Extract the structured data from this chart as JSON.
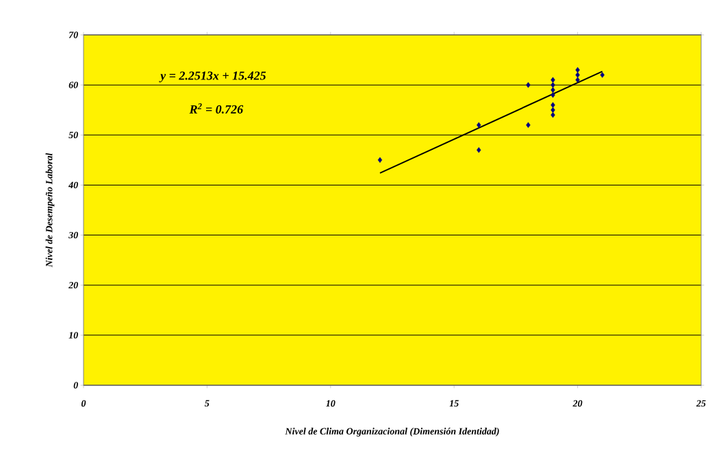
{
  "chart_data": {
    "type": "scatter",
    "xlabel": "Nivel de Clima Organizacional (Dimensión Identidad)",
    "ylabel": "Nivel de Desempeño Laboral",
    "xlim": [
      0,
      25
    ],
    "xticks": [
      0,
      5,
      10,
      15,
      20,
      25
    ],
    "ylim": [
      0,
      70
    ],
    "yticks": [
      0,
      10,
      20,
      30,
      40,
      50,
      60,
      70
    ],
    "grid": "y",
    "marker": "diamond",
    "series": [
      {
        "color": "#000080",
        "x": [
          12,
          16,
          16,
          18,
          18,
          19,
          19,
          19,
          19,
          19,
          19,
          19,
          20,
          20,
          20,
          21
        ],
        "values": [
          45,
          52,
          47,
          60,
          52,
          61,
          60,
          59,
          58,
          56,
          55,
          54,
          63,
          62,
          61,
          62
        ]
      },
      {
        "type": "line",
        "color": "#000000",
        "marker": "none",
        "x": [
          12,
          21
        ],
        "values": [
          42.4,
          62.7
        ]
      }
    ],
    "annotations": [
      "y = 2.2513x + 15.425",
      "R$^{2}$ = 0.726"
    ]
  }
}
